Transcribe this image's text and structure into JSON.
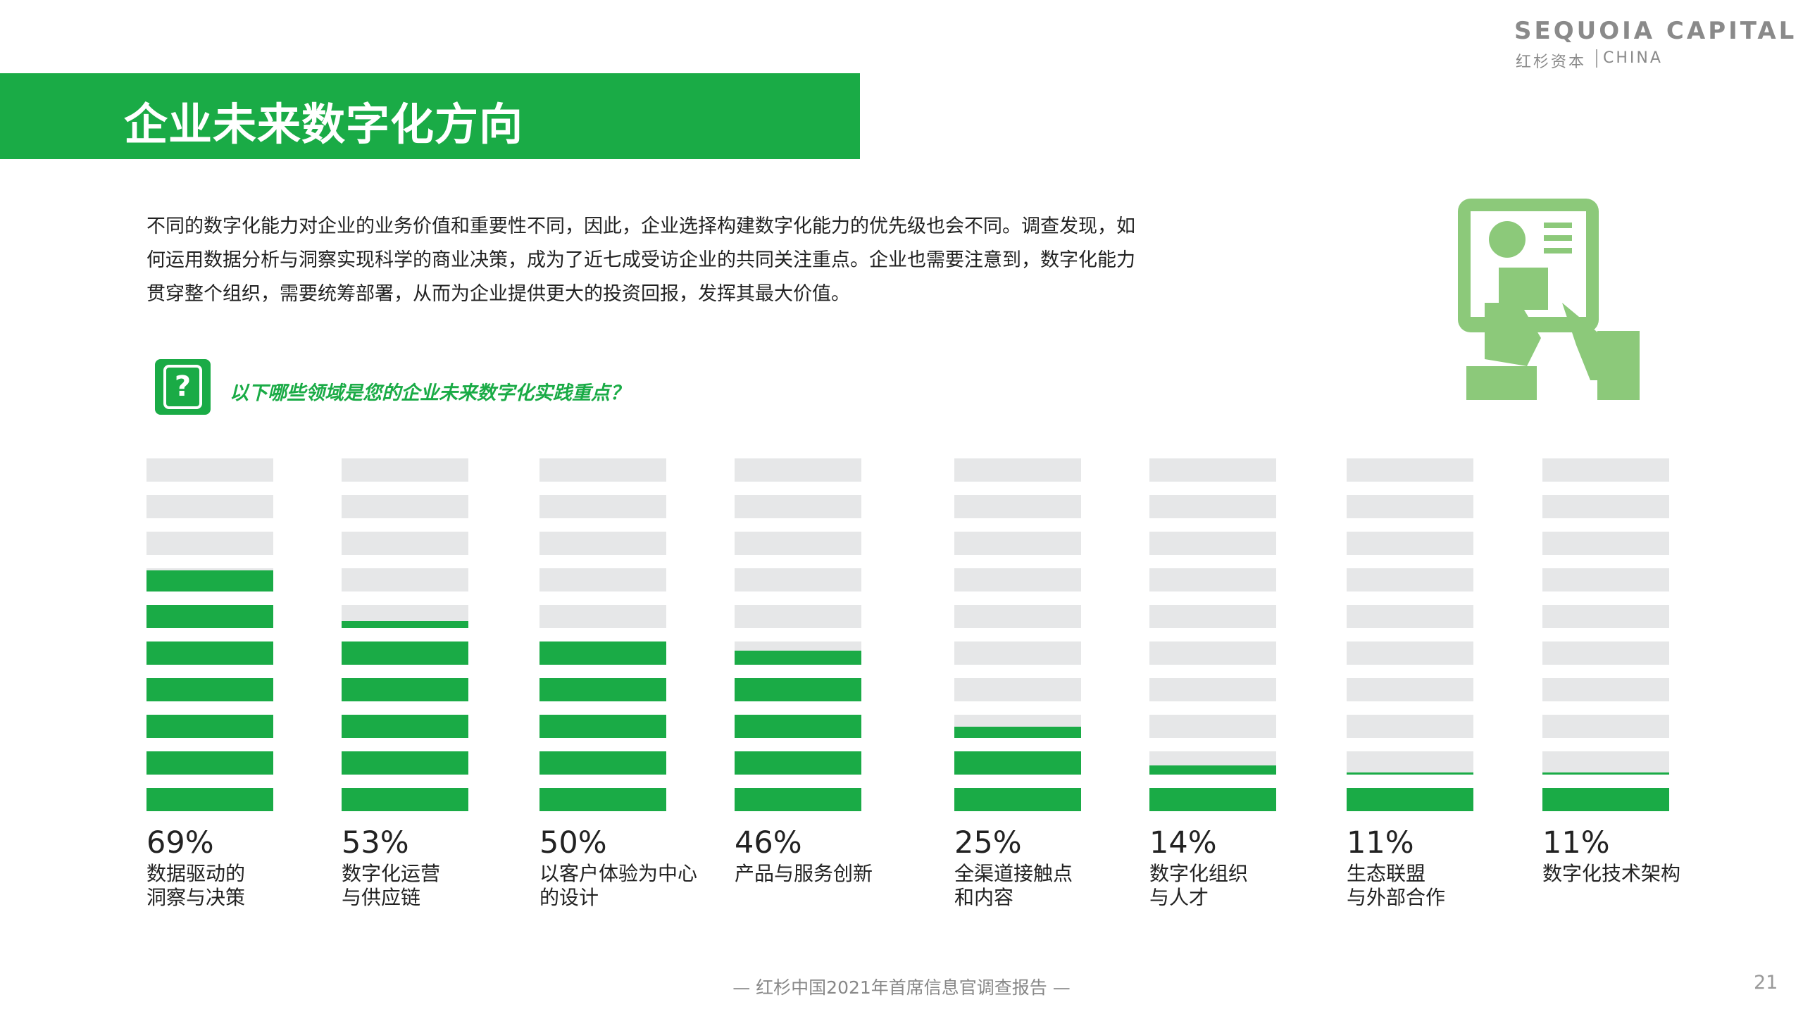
{
  "header": {
    "title": "企业未来数字化方向",
    "logo": "SEQUOIA CAPITAL",
    "logo_cn": "红杉资本",
    "logo_en": "CHINA"
  },
  "intro": "不同的数字化能力对企业的业务价值和重要性不同，因此，企业选择构建数字化能力的优先级也会不同。调查发现，如何运用数据分析与洞察实现科学的商业决策，成为了近七成受访企业的共同关注重点。企业也需要注意到，数字化能力贯穿整个组织，需要统筹部署，从而为企业提供更大的投资回报，发挥其最大价值。",
  "footer": "— 红杉中国2021年首席信息官调查报告 —",
  "page_number": "21",
  "chart_data": {
    "type": "bar",
    "title": "以下哪些领域是您的企业未来数字化实践重点？",
    "categories": [
      "数据驱动的\n洞察与决策",
      "数字化运营\n与供应链",
      "以客户体验为中心\n的设计",
      "产品与服务创新",
      "全渠道接触点\n和内容",
      "数字化组织\n与人才",
      "生态联盟\n与外部合作",
      "数字化技术架构"
    ],
    "values": [
      69,
      53,
      50,
      46,
      25,
      14,
      11,
      11
    ],
    "value_labels": [
      "69%",
      "53%",
      "50%",
      "46%",
      "25%",
      "14%",
      "11%",
      "11%"
    ],
    "color": "#1aab46",
    "ylim": [
      0,
      100
    ]
  }
}
